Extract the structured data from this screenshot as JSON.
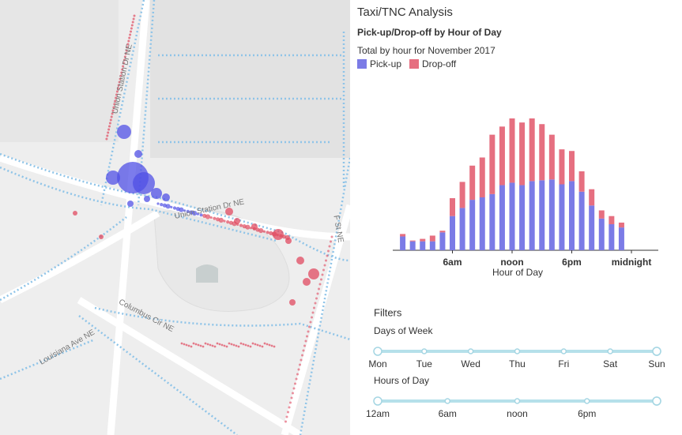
{
  "map": {
    "labels": [
      "Union Station Dr NE",
      "Union Station Dr NE",
      "Columbus Cir NE",
      "Louisiana Ave NE",
      "F St NE"
    ]
  },
  "panel": {
    "title": "Taxi/TNC Analysis"
  },
  "chart_data": {
    "type": "bar",
    "stacked": true,
    "title": "Pick-up/Drop-off by Hour of Day",
    "subtitle": "Total by hour for November 2017",
    "x_label": "Hour of Day",
    "x": [
      1,
      2,
      3,
      4,
      5,
      6,
      7,
      8,
      9,
      10,
      11,
      12,
      13,
      14,
      15,
      16,
      17,
      18,
      19,
      20,
      21,
      22,
      23
    ],
    "xlim": [
      0,
      26.7
    ],
    "xticks": [
      {
        "value": 6,
        "label": "6am"
      },
      {
        "value": 12,
        "label": "noon"
      },
      {
        "value": 18,
        "label": "6pm"
      },
      {
        "value": 24,
        "label": "midnight"
      }
    ],
    "series": [
      {
        "name": "Pick-up",
        "color": "#7b7be6",
        "values": [
          17,
          11,
          11,
          11,
          22,
          42,
          52,
          62,
          65,
          69,
          80,
          83,
          80,
          85,
          86,
          87,
          81,
          85,
          72,
          55,
          39,
          32,
          28
        ]
      },
      {
        "name": "Drop-off",
        "color": "#e66f80",
        "values": [
          3,
          1,
          3,
          7,
          2,
          22,
          32,
          42,
          49,
          73,
          72,
          79,
          77,
          77,
          69,
          55,
          43,
          37,
          25,
          20,
          10,
          10,
          6
        ]
      }
    ]
  },
  "filters": {
    "title": "Filters",
    "days": {
      "label": "Days of Week",
      "options": [
        "Mon",
        "Tue",
        "Wed",
        "Thu",
        "Fri",
        "Sat",
        "Sun"
      ]
    },
    "hours": {
      "label": "Hours of Day",
      "options": [
        "12am",
        "6am",
        "noon",
        "6pm"
      ]
    }
  }
}
